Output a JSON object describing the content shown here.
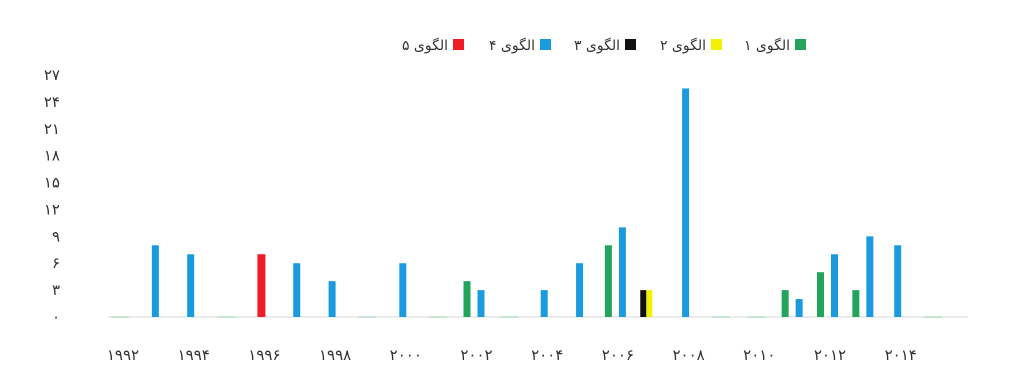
{
  "chart_data": {
    "type": "bar",
    "title": "",
    "xlabel": "",
    "ylabel": "",
    "ylim": [
      0,
      27
    ],
    "y_ticks": [
      {
        "value": 0,
        "label": "۰"
      },
      {
        "value": 3,
        "label": "۳"
      },
      {
        "value": 6,
        "label": "۶"
      },
      {
        "value": 9,
        "label": "۹"
      },
      {
        "value": 12,
        "label": "۱۲"
      },
      {
        "value": 15,
        "label": "۱۵"
      },
      {
        "value": 18,
        "label": "۱۸"
      },
      {
        "value": 21,
        "label": "۲۱"
      },
      {
        "value": 24,
        "label": "۲۴"
      },
      {
        "value": 27,
        "label": "۲۷"
      }
    ],
    "categories": [
      "1992",
      "1993",
      "1994",
      "1995",
      "1996",
      "1997",
      "1998",
      "1999",
      "2000",
      "2001",
      "2002",
      "2003",
      "2004",
      "2005",
      "2006",
      "2007",
      "2008",
      "2009",
      "2010",
      "2011",
      "2012",
      "2013",
      "2014",
      "2015"
    ],
    "x_tick_labels": [
      {
        "category": "1992",
        "label": "۱۹۹۲"
      },
      {
        "category": "1994",
        "label": "۱۹۹۴"
      },
      {
        "category": "1996",
        "label": "۱۹۹۶"
      },
      {
        "category": "1998",
        "label": "۱۹۹۸"
      },
      {
        "category": "2000",
        "label": "۲۰۰۰"
      },
      {
        "category": "2002",
        "label": "۲۰۰۲"
      },
      {
        "category": "2004",
        "label": "۲۰۰۴"
      },
      {
        "category": "2006",
        "label": "۲۰۰۶"
      },
      {
        "category": "2008",
        "label": "۲۰۰۸"
      },
      {
        "category": "2010",
        "label": "۲۰۱۰"
      },
      {
        "category": "2012",
        "label": "۲۰۱۲"
      },
      {
        "category": "2014",
        "label": "۲۰۱۴"
      }
    ],
    "legend_placement": "top",
    "series": [
      {
        "name": "الگوی ۱",
        "color": "#22a55b",
        "values": [
          0,
          0,
          0,
          0,
          0,
          0,
          0,
          0,
          0,
          0,
          4,
          0,
          0,
          0,
          8,
          0,
          0,
          0,
          0,
          3,
          5,
          3,
          0,
          0
        ]
      },
      {
        "name": "الگوی ۲",
        "color": "#f2f200",
        "values": [
          0,
          0,
          0,
          0,
          0,
          0,
          0,
          0,
          0,
          0,
          0,
          0,
          0,
          0,
          0,
          3,
          0,
          0,
          0,
          0,
          0,
          0,
          0,
          0
        ]
      },
      {
        "name": "الگوی ۳",
        "color": "#111111",
        "values": [
          0,
          0,
          0,
          0,
          0,
          0,
          0,
          0,
          0,
          0,
          0,
          0,
          0,
          0,
          0,
          3,
          0,
          0,
          0,
          0,
          0,
          0,
          0,
          0
        ]
      },
      {
        "name": "الگوی ۴",
        "color": "#1a9be0",
        "values": [
          0,
          8,
          7,
          0,
          0,
          6,
          4,
          0,
          6,
          0,
          3,
          0,
          3,
          6,
          10,
          0,
          25.5,
          0,
          0,
          2,
          7,
          9,
          8,
          0
        ]
      },
      {
        "name": "الگوی ۵",
        "color": "#ee1c24",
        "values": [
          0,
          0,
          0,
          0,
          7,
          0,
          0,
          0,
          0,
          0,
          0,
          0,
          0,
          0,
          0,
          0,
          0,
          0,
          0,
          0,
          0,
          0,
          0,
          0
        ]
      }
    ],
    "grid": false
  }
}
